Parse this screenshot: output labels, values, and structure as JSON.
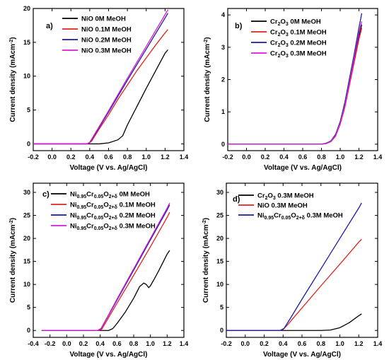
{
  "colors": {
    "black": "#000000",
    "red": "#e0231c",
    "blue": "#1a1aa8",
    "magenta": "#d81bd8"
  },
  "chart_data": [
    {
      "type": "line",
      "panel_label": "a)",
      "xlabel": "Voltage (V vs. Ag/AgCl)",
      "ylabel": "Current density (mAcm",
      "ylabel_sup": "-2",
      "ylabel_close": ")",
      "xlim": [
        -0.2,
        1.4
      ],
      "ylim": [
        -1,
        20
      ],
      "xticks": [
        "-0.2",
        "0.0",
        "0.2",
        "0.4",
        "0.6",
        "0.8",
        "1.0",
        "1.2",
        "1.4"
      ],
      "yticks": [
        "0",
        "5",
        "10",
        "15",
        "20"
      ],
      "legend_position": "top-right",
      "series": [
        {
          "name": "NiO 0M MeOH",
          "color": "#000000",
          "points": [
            [
              -0.2,
              0
            ],
            [
              0.5,
              0
            ],
            [
              0.6,
              0.15
            ],
            [
              0.7,
              0.6
            ],
            [
              0.75,
              1.2
            ],
            [
              0.8,
              2.8
            ],
            [
              0.9,
              5.5
            ],
            [
              1.0,
              8.2
            ],
            [
              1.1,
              10.8
            ],
            [
              1.2,
              13.4
            ],
            [
              1.23,
              13.9
            ]
          ]
        },
        {
          "name": "NiO 0.1M MeOH",
          "color": "#e0231c",
          "points": [
            [
              -0.2,
              0
            ],
            [
              0.38,
              0
            ],
            [
              0.42,
              0.4
            ],
            [
              0.5,
              2.2
            ],
            [
              0.6,
              4.3
            ],
            [
              0.7,
              6.6
            ],
            [
              0.8,
              8.7
            ],
            [
              0.9,
              10.8
            ],
            [
              1.0,
              12.7
            ],
            [
              1.1,
              14.6
            ],
            [
              1.2,
              16.4
            ],
            [
              1.23,
              16.9
            ]
          ]
        },
        {
          "name": "NiO 0.2M  MeOH",
          "color": "#1a1aa8",
          "points": [
            [
              -0.2,
              0
            ],
            [
              0.37,
              0
            ],
            [
              0.4,
              0.2
            ],
            [
              0.45,
              1.3
            ],
            [
              0.6,
              4.7
            ],
            [
              0.8,
              9.4
            ],
            [
              1.0,
              14.0
            ],
            [
              1.2,
              18.6
            ],
            [
              1.23,
              19.3
            ]
          ]
        },
        {
          "name": "NiO 0.3M  MeOH",
          "color": "#d81bd8",
          "points": [
            [
              -0.2,
              0
            ],
            [
              0.37,
              0
            ],
            [
              0.4,
              0.25
            ],
            [
              0.45,
              1.4
            ],
            [
              0.6,
              4.9
            ],
            [
              0.8,
              9.7
            ],
            [
              1.0,
              14.4
            ],
            [
              1.2,
              19.1
            ],
            [
              1.23,
              19.8
            ]
          ]
        }
      ]
    },
    {
      "type": "line",
      "panel_label": "b)",
      "xlabel": "Voltage (V vs. Ag/AgCl)",
      "ylabel": "Current density (mAcm",
      "ylabel_sup": "-2",
      "ylabel_close": ")",
      "xlim": [
        -0.2,
        1.4
      ],
      "ylim": [
        -0.2,
        4.2
      ],
      "xticks": [
        "-0.2",
        "0.0",
        "0.2",
        "0.4",
        "0.6",
        "0.8",
        "1.0",
        "1.2",
        "1.4"
      ],
      "yticks": [
        "0",
        "1",
        "2",
        "3",
        "4"
      ],
      "legend_position": "top-center",
      "series": [
        {
          "name": "Cr2O3 0M MeOH",
          "name_parts": [
            "Cr",
            "2",
            "O",
            "3",
            " 0M MeOH"
          ],
          "color": "#000000",
          "points": [
            [
              -0.2,
              0
            ],
            [
              0.8,
              0
            ],
            [
              0.85,
              0.02
            ],
            [
              0.9,
              0.08
            ],
            [
              0.95,
              0.25
            ],
            [
              1.0,
              0.65
            ],
            [
              1.05,
              1.2
            ],
            [
              1.1,
              1.9
            ],
            [
              1.15,
              2.6
            ],
            [
              1.2,
              3.35
            ],
            [
              1.23,
              3.7
            ]
          ]
        },
        {
          "name": "Cr2O3 0.1M MeOH",
          "name_parts": [
            "Cr",
            "2",
            "O",
            "3",
            " 0.1M MeOH"
          ],
          "color": "#e0231c",
          "points": [
            [
              -0.2,
              0
            ],
            [
              0.8,
              0
            ],
            [
              0.85,
              0.02
            ],
            [
              0.9,
              0.08
            ],
            [
              0.95,
              0.25
            ],
            [
              1.0,
              0.62
            ],
            [
              1.05,
              1.15
            ],
            [
              1.1,
              1.85
            ],
            [
              1.15,
              2.55
            ],
            [
              1.2,
              3.25
            ],
            [
              1.23,
              3.6
            ]
          ]
        },
        {
          "name": "Cr2O3 0.2M MeOH",
          "name_parts": [
            "Cr",
            "2",
            "O",
            "3",
            " 0.2M MeOH"
          ],
          "color": "#1a1aa8",
          "points": [
            [
              -0.2,
              0
            ],
            [
              0.8,
              0
            ],
            [
              0.85,
              0.03
            ],
            [
              0.9,
              0.1
            ],
            [
              0.95,
              0.3
            ],
            [
              1.0,
              0.7
            ],
            [
              1.05,
              1.3
            ],
            [
              1.1,
              2.05
            ],
            [
              1.15,
              2.8
            ],
            [
              1.2,
              3.6
            ],
            [
              1.23,
              4.05
            ]
          ]
        },
        {
          "name": "Cr2O3 0.3M MeOH",
          "name_parts": [
            "Cr",
            "2",
            "O",
            "3",
            " 0.3M MeOH"
          ],
          "color": "#d81bd8",
          "points": [
            [
              -0.2,
              0
            ],
            [
              0.8,
              0
            ],
            [
              0.85,
              0.02
            ],
            [
              0.9,
              0.09
            ],
            [
              0.95,
              0.27
            ],
            [
              1.0,
              0.66
            ],
            [
              1.05,
              1.22
            ],
            [
              1.1,
              1.95
            ],
            [
              1.15,
              2.7
            ],
            [
              1.2,
              3.45
            ],
            [
              1.23,
              3.8
            ]
          ]
        }
      ]
    },
    {
      "type": "line",
      "panel_label": "c)",
      "xlabel": "Voltage (V vs. Ag/AgCl)",
      "ylabel": "Current density (mAcm",
      "ylabel_sup": "-2",
      "ylabel_close": ")",
      "xlim": [
        -0.4,
        1.4
      ],
      "ylim": [
        -1.5,
        32
      ],
      "xticks": [
        "-0.4",
        "-0.2",
        "0.0",
        "0.2",
        "0.4",
        "0.6",
        "0.8",
        "1.0",
        "1.2",
        "1.4"
      ],
      "yticks": [
        "0",
        "5",
        "10",
        "15",
        "20",
        "25",
        "30"
      ],
      "legend_position": "top-left",
      "series": [
        {
          "name": "Ni0.95Cr0.05O2+δ 0M MeOH",
          "name_parts": [
            "Ni",
            "0.95",
            "Cr",
            "0.05",
            "O",
            "2+δ",
            " 0M MeOH"
          ],
          "color": "#000000",
          "points": [
            [
              -0.3,
              0
            ],
            [
              0.5,
              0
            ],
            [
              0.55,
              0.4
            ],
            [
              0.6,
              1.5
            ],
            [
              0.7,
              4.0
            ],
            [
              0.8,
              7.0
            ],
            [
              0.87,
              9.5
            ],
            [
              0.92,
              10.3
            ],
            [
              0.95,
              10.0
            ],
            [
              0.98,
              9.3
            ],
            [
              1.0,
              9.7
            ],
            [
              1.05,
              11.3
            ],
            [
              1.1,
              13.0
            ],
            [
              1.15,
              14.8
            ],
            [
              1.2,
              16.6
            ],
            [
              1.23,
              17.4
            ]
          ]
        },
        {
          "name": "Ni0.95Cr0.05O2+δ 0.1M MeOH",
          "name_parts": [
            "Ni",
            "0.95",
            "Cr",
            "0.05",
            "O",
            "2+δ",
            " 0.1M MeOH"
          ],
          "color": "#e0231c",
          "points": [
            [
              -0.3,
              0
            ],
            [
              0.38,
              0
            ],
            [
              0.42,
              0.3
            ],
            [
              0.5,
              2.8
            ],
            [
              0.6,
              5.9
            ],
            [
              0.8,
              12.0
            ],
            [
              1.0,
              18.2
            ],
            [
              1.2,
              24.6
            ],
            [
              1.23,
              25.7
            ]
          ]
        },
        {
          "name": "Ni0.95Cr0.05O2+δ 0.2M MeOH",
          "name_parts": [
            "Ni",
            "0.95",
            "Cr",
            "0.05",
            "O",
            "2+δ",
            " 0.2M MeOH"
          ],
          "color": "#1a1aa8",
          "points": [
            [
              -0.3,
              0
            ],
            [
              0.37,
              0
            ],
            [
              0.41,
              0.4
            ],
            [
              0.5,
              3.3
            ],
            [
              0.6,
              6.6
            ],
            [
              0.8,
              13.1
            ],
            [
              1.0,
              19.7
            ],
            [
              1.2,
              26.2
            ],
            [
              1.23,
              27.3
            ]
          ]
        },
        {
          "name": "Ni0.95Cr0.05O2+δ 0.3M MeOH",
          "name_parts": [
            "Ni",
            "0.95",
            "Cr",
            "0.05",
            "O",
            "2+δ",
            " 0.3M MeOH"
          ],
          "color": "#d81bd8",
          "points": [
            [
              -0.3,
              0
            ],
            [
              0.37,
              0
            ],
            [
              0.41,
              0.45
            ],
            [
              0.5,
              3.4
            ],
            [
              0.6,
              6.8
            ],
            [
              0.8,
              13.4
            ],
            [
              1.0,
              20.0
            ],
            [
              1.2,
              26.6
            ],
            [
              1.23,
              27.7
            ]
          ]
        }
      ]
    },
    {
      "type": "line",
      "panel_label": "d)",
      "xlabel": "Voltage (V vs. Ag/AgCl)",
      "ylabel": "Current density (mAcm",
      "ylabel_sup": "-2",
      "ylabel_close": ")",
      "xlim": [
        -0.2,
        1.4
      ],
      "ylim": [
        -1.5,
        32
      ],
      "xticks": [
        "-0.2",
        "0.0",
        "0.2",
        "0.4",
        "0.6",
        "0.8",
        "1.0",
        "1.2",
        "1.4"
      ],
      "yticks": [
        "0",
        "5",
        "10",
        "15",
        "20",
        "25",
        "30"
      ],
      "legend_position": "top-left",
      "series": [
        {
          "name": "Cr2O3 0.3M MeOH",
          "name_parts": [
            "Cr",
            "2",
            "O",
            "3",
            "  0.3M MeOH"
          ],
          "color": "#000000",
          "points": [
            [
              -0.2,
              0
            ],
            [
              0.8,
              0
            ],
            [
              0.9,
              0.1
            ],
            [
              1.0,
              0.6
            ],
            [
              1.1,
              1.7
            ],
            [
              1.2,
              3.2
            ],
            [
              1.23,
              3.6
            ]
          ]
        },
        {
          "name": "NiO   0.3M MeOH",
          "color": "#e0231c",
          "points": [
            [
              -0.2,
              0
            ],
            [
              0.37,
              0
            ],
            [
              0.4,
              0.2
            ],
            [
              0.45,
              1.3
            ],
            [
              0.6,
              4.9
            ],
            [
              0.8,
              9.7
            ],
            [
              1.0,
              14.4
            ],
            [
              1.2,
              19.2
            ],
            [
              1.23,
              19.8
            ]
          ]
        },
        {
          "name": "Ni0.95Cr0.05O2+δ 0.3M MeOH",
          "name_parts": [
            "Ni",
            "0.95",
            "Cr",
            "0.05",
            "O",
            "2+δ",
            " 0.3M MeOH"
          ],
          "color": "#1a1aa8",
          "points": [
            [
              -0.2,
              0
            ],
            [
              0.37,
              0
            ],
            [
              0.41,
              0.45
            ],
            [
              0.5,
              3.4
            ],
            [
              0.6,
              6.8
            ],
            [
              0.8,
              13.4
            ],
            [
              1.0,
              20.0
            ],
            [
              1.2,
              26.6
            ],
            [
              1.23,
              27.7
            ]
          ]
        }
      ]
    }
  ]
}
